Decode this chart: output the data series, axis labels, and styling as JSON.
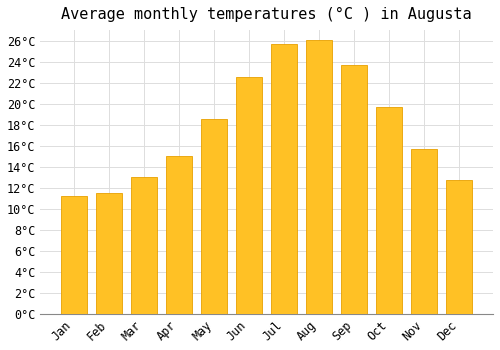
{
  "title": "Average monthly temperatures (°C ) in Augusta",
  "months": [
    "Jan",
    "Feb",
    "Mar",
    "Apr",
    "May",
    "Jun",
    "Jul",
    "Aug",
    "Sep",
    "Oct",
    "Nov",
    "Dec"
  ],
  "values": [
    11.2,
    11.5,
    13.0,
    15.0,
    18.5,
    22.5,
    25.7,
    26.1,
    23.7,
    19.7,
    15.7,
    12.7
  ],
  "bar_color_top": "#FFC125",
  "bar_color_bottom": "#F5A800",
  "bar_edge_color": "#E8A000",
  "background_color": "#FFFFFF",
  "grid_color": "#DDDDDD",
  "ylim": [
    0,
    27
  ],
  "yticks": [
    0,
    2,
    4,
    6,
    8,
    10,
    12,
    14,
    16,
    18,
    20,
    22,
    24,
    26
  ],
  "title_fontsize": 11,
  "tick_fontsize": 8.5,
  "font_family": "monospace"
}
